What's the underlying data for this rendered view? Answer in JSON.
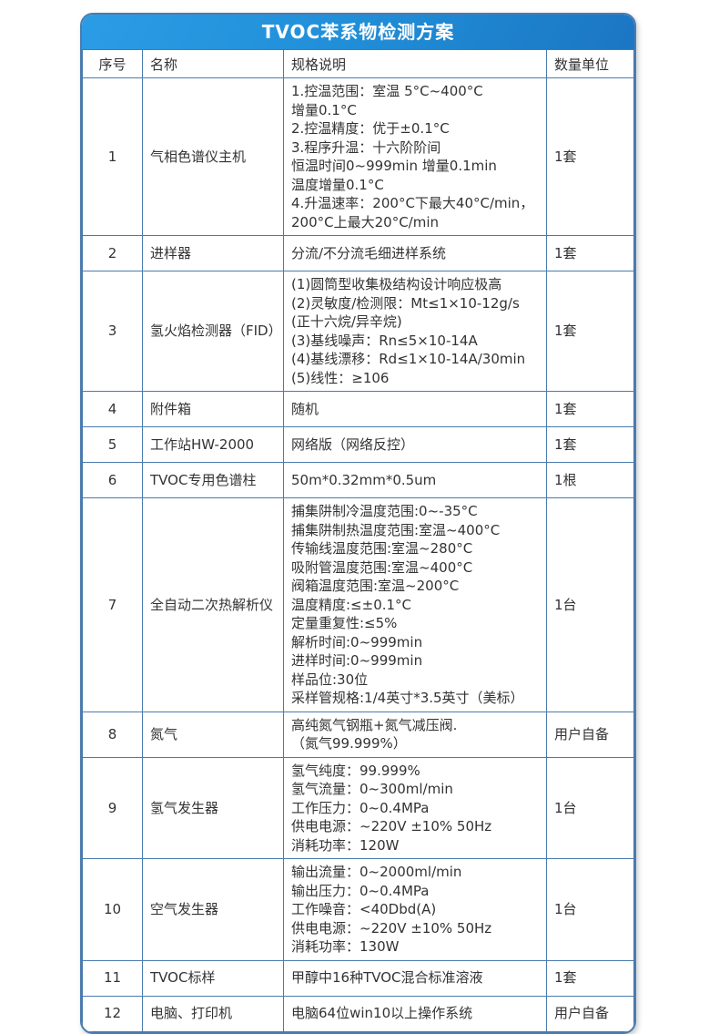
{
  "title": "TVOC苯系物检测方案",
  "colors": {
    "header_gradient_start": "#2b9ce5",
    "header_gradient_end": "#1b76c3",
    "grid_border": "#4b7bae",
    "title_text": "#ffffff",
    "body_text": "#333333",
    "background": "#ffffff"
  },
  "table": {
    "headers": [
      "序号",
      "名称",
      "规格说明",
      "数量单位"
    ],
    "rows": [
      {
        "no": "1",
        "name": "气相色谱仪主机",
        "spec": [
          "1.控温范围：室温 5°C~400°C",
          "增量0.1°C",
          "2.控温精度：优于±0.1°C",
          "3.程序升温：十六阶阶间",
          "恒温时间0~999min 增量0.1min",
          "温度增量0.1°C",
          "4.升温速率：200°C下最大40°C/min，",
          "200°C上最大20°C/min"
        ],
        "qty": "1套"
      },
      {
        "no": "2",
        "name": "进样器",
        "spec": [
          "分流/不分流毛细进样系统"
        ],
        "qty": "1套"
      },
      {
        "no": "3",
        "name": "氢火焰检测器（FID）",
        "spec": [
          "(1)圆筒型收集极结构设计响应极高",
          "(2)灵敏度/检测限：Mt≤1×10-12g/s",
          "(正十六烷/异辛烷)",
          "(3)基线噪声：Rn≤5×10-14A",
          "(4)基线漂移：Rd≤1×10-14A/30min",
          "(5)线性：≥106"
        ],
        "qty": "1套"
      },
      {
        "no": "4",
        "name": "附件箱",
        "spec": [
          "随机"
        ],
        "qty": "1套"
      },
      {
        "no": "5",
        "name": "工作站HW-2000",
        "spec": [
          "网络版（网络反控）"
        ],
        "qty": "1套"
      },
      {
        "no": "6",
        "name": "TVOC专用色谱柱",
        "spec": [
          "50m*0.32mm*0.5um"
        ],
        "qty": "1根"
      },
      {
        "no": "7",
        "name": "全自动二次热解析仪",
        "spec": [
          "捕集阱制冷温度范围:0~-35°C",
          "捕集阱制热温度范围:室温~400°C",
          "传输线温度范围:室温~280°C",
          "吸附管温度范围:室温~400°C",
          "阀箱温度范围:室温~200°C",
          "温度精度:≤±0.1°C",
          "定量重复性:≤5%",
          "解析时间:0~999min",
          "进样时间:0~999min",
          "样品位:30位",
          "采样管规格:1/4英寸*3.5英寸（美标）"
        ],
        "qty": "1台"
      },
      {
        "no": "8",
        "name": "氮气",
        "spec": [
          "高纯氮气钢瓶+氮气减压阀.",
          "（氮气99.999%）"
        ],
        "qty": "用户自备"
      },
      {
        "no": "9",
        "name": "氢气发生器",
        "spec": [
          "氢气纯度：99.999%",
          "氢气流量：0~300ml/min",
          "工作压力：0~0.4MPa",
          "供电电源：~220V ±10% 50Hz",
          "消耗功率：120W"
        ],
        "qty": "1台"
      },
      {
        "no": "10",
        "name": "空气发生器",
        "spec": [
          "输出流量：0~2000ml/min",
          "输出压力：0~0.4MPa",
          "工作噪音：<40Dbd(A)",
          "供电电源：~220V ±10% 50Hz",
          "消耗功率：130W"
        ],
        "qty": "1台"
      },
      {
        "no": "11",
        "name": "TVOC标样",
        "spec": [
          "甲醇中16种TVOC混合标准溶液"
        ],
        "qty": "1套"
      },
      {
        "no": "12",
        "name": "电脑、打印机",
        "spec": [
          "电脑64位win10以上操作系统"
        ],
        "qty": "用户自备"
      }
    ]
  }
}
